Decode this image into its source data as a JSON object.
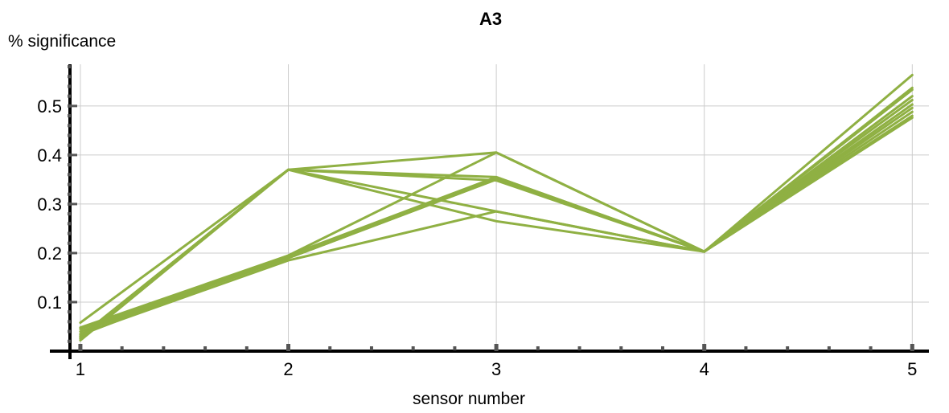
{
  "chart_data": {
    "type": "line",
    "title": "A3",
    "xlabel": "sensor number",
    "ylabel": "% significance",
    "x": [
      1,
      2,
      3,
      4,
      5
    ],
    "xticks": [
      1,
      2,
      3,
      4,
      5
    ],
    "yticks": [
      0.1,
      0.2,
      0.3,
      0.4,
      0.5
    ],
    "ytick_labels": [
      "0.1",
      "0.2",
      "0.3",
      "0.4",
      "0.5"
    ],
    "xlim": [
      0.95,
      5.08
    ],
    "ylim": [
      0,
      0.585
    ],
    "grid": true,
    "color": "#8fb043",
    "series": [
      {
        "values": [
          0.058,
          0.37,
          0.265,
          0.203,
          0.563
        ]
      },
      {
        "values": [
          0.022,
          0.37,
          0.405,
          0.203,
          0.537
        ]
      },
      {
        "values": [
          0.03,
          0.37,
          0.355,
          0.203,
          0.52
        ]
      },
      {
        "values": [
          0.025,
          0.37,
          0.348,
          0.203,
          0.503
        ]
      },
      {
        "values": [
          0.028,
          0.37,
          0.285,
          0.203,
          0.48
        ]
      },
      {
        "values": [
          0.048,
          0.195,
          0.405,
          0.203,
          0.533
        ]
      },
      {
        "values": [
          0.04,
          0.19,
          0.35,
          0.203,
          0.512
        ]
      },
      {
        "values": [
          0.035,
          0.185,
          0.285,
          0.203,
          0.496
        ]
      },
      {
        "values": [
          0.045,
          0.19,
          0.35,
          0.203,
          0.488
        ]
      },
      {
        "values": [
          0.033,
          0.195,
          0.355,
          0.203,
          0.476
        ]
      }
    ]
  }
}
